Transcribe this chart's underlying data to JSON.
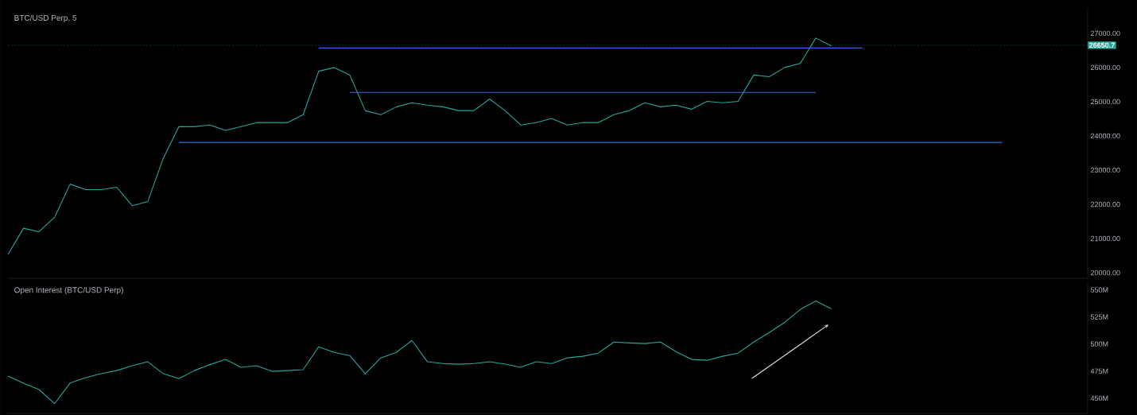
{
  "chart_data": [
    {
      "type": "line",
      "title": "BTC/USD Perp, 5",
      "tick_labels": "y",
      "categories": [
        null,
        null,
        null,
        null,
        null,
        null,
        null,
        null,
        null,
        null,
        null,
        null,
        null,
        null,
        null,
        null,
        null,
        null,
        null,
        null,
        null,
        null,
        null,
        null,
        null,
        null,
        null,
        null,
        null,
        null,
        null,
        null,
        null,
        null,
        null,
        null,
        null,
        null,
        null,
        null,
        null,
        null,
        null,
        null,
        null,
        null,
        null,
        null,
        null,
        null,
        null,
        null,
        null,
        null,
        null,
        null,
        null,
        null,
        null,
        null,
        null,
        null,
        null,
        null,
        null,
        null,
        null,
        null,
        null,
        null
      ],
      "ylim": [
        19840,
        27740
      ],
      "yticks": [
        {
          "value": 20000,
          "label": "20000.00"
        },
        {
          "value": 21000,
          "label": "21000.00"
        },
        {
          "value": 22000,
          "label": "22000.00"
        },
        {
          "value": 23000,
          "label": "23000.00"
        },
        {
          "value": 24000,
          "label": "24000.00"
        },
        {
          "value": 25000,
          "label": "25000.00"
        },
        {
          "value": 26000,
          "label": "26000.00"
        },
        {
          "value": 27000,
          "label": "27000.00"
        }
      ],
      "ref_lines": [
        {
          "axis": "y",
          "value": 26650.7,
          "label": "26650.7",
          "color": "#26a69a"
        }
      ],
      "series": [
        {
          "color": "#26a69a",
          "values": [
            20530,
            21300,
            21200,
            21620,
            22590,
            22430,
            22430,
            22500,
            21960,
            22080,
            23350,
            24270,
            24270,
            24320,
            24160,
            24270,
            24390,
            24390,
            24390,
            24620,
            25890,
            26000,
            25780,
            24740,
            24620,
            24850,
            24970,
            24900,
            24850,
            24740,
            24740,
            25080,
            24740,
            24320,
            24390,
            24510,
            24320,
            24390,
            24390,
            24620,
            24740,
            24970,
            24850,
            24900,
            24780,
            25010,
            24970,
            25010,
            25780,
            25730,
            26000,
            26120,
            26860,
            26630,
            null,
            null,
            null,
            null,
            null,
            null,
            null,
            null,
            null,
            null,
            null,
            null,
            null,
            null,
            null,
            null
          ]
        },
        {
          "color": "#2f6fd6",
          "values": [
            null,
            null,
            null,
            null,
            null,
            null,
            null,
            null,
            null,
            null,
            null,
            null,
            null,
            null,
            null,
            null,
            null,
            null,
            null,
            null,
            26570,
            26570,
            26570,
            26570,
            26570,
            26570,
            26570,
            26570,
            26570,
            26570,
            26570,
            26570,
            26570,
            26570,
            26570,
            26570,
            26570,
            26570,
            26570,
            26570,
            26570,
            26570,
            26570,
            26570,
            26570,
            26570,
            26570,
            26570,
            26570,
            26570,
            26570,
            26570,
            26570,
            26570,
            26570,
            26570,
            null,
            null,
            null,
            null,
            null,
            null,
            null,
            null,
            null,
            null,
            null,
            null,
            null,
            null
          ]
        },
        {
          "color": "#2f6fd6",
          "values": [
            null,
            null,
            null,
            null,
            null,
            null,
            null,
            null,
            null,
            null,
            null,
            null,
            null,
            null,
            null,
            null,
            null,
            null,
            null,
            null,
            null,
            null,
            25270,
            25270,
            25270,
            25270,
            25270,
            25270,
            25270,
            25270,
            25270,
            25270,
            25270,
            25270,
            25270,
            25270,
            25270,
            25270,
            25270,
            25270,
            25270,
            25270,
            25270,
            25270,
            25270,
            25270,
            25270,
            25270,
            25270,
            25270,
            25270,
            25270,
            25270,
            null,
            null,
            null,
            null,
            null,
            null,
            null,
            null,
            null,
            null,
            null,
            null,
            null,
            null,
            null,
            null,
            null
          ]
        },
        {
          "color": "#2f6fd6",
          "values": [
            null,
            null,
            null,
            null,
            null,
            null,
            null,
            null,
            null,
            null,
            null,
            23810,
            23810,
            23810,
            23810,
            23810,
            23810,
            23810,
            23810,
            23810,
            23810,
            23810,
            23810,
            23810,
            23810,
            23810,
            23810,
            23810,
            23810,
            23810,
            23810,
            23810,
            23810,
            23810,
            23810,
            23810,
            23810,
            23810,
            23810,
            23810,
            23810,
            23810,
            23810,
            23810,
            23810,
            23810,
            23810,
            23810,
            23810,
            23810,
            23810,
            23810,
            23810,
            23810,
            23810,
            23810,
            23810,
            23810,
            23810,
            23810,
            23810,
            23810,
            23810,
            23810,
            23810,
            null,
            null,
            null,
            null,
            null
          ]
        }
      ]
    },
    {
      "type": "line",
      "title": "Open Interest (BTC/USD Perp)",
      "tick_labels": "y",
      "categories": [
        null,
        null,
        null,
        null,
        null,
        null,
        null,
        null,
        null,
        null,
        null,
        null,
        null,
        null,
        null,
        null,
        null,
        null,
        null,
        null,
        null,
        null,
        null,
        null,
        null,
        null,
        null,
        null,
        null,
        null,
        null,
        null,
        null,
        null,
        null,
        null,
        null,
        null,
        null,
        null,
        null,
        null,
        null,
        null,
        null,
        null,
        null,
        null,
        null,
        null,
        null,
        null,
        null,
        null,
        null,
        null,
        null,
        null,
        null,
        null,
        null,
        null,
        null,
        null,
        null,
        null,
        null,
        null,
        null,
        null
      ],
      "ylim": [
        436,
        557
      ],
      "yticks": [
        {
          "value": 450,
          "label": "450M"
        },
        {
          "value": 475,
          "label": "475M"
        },
        {
          "value": 500,
          "label": "500M"
        },
        {
          "value": 525,
          "label": "525M"
        },
        {
          "value": 550,
          "label": "550M"
        }
      ],
      "series": [
        {
          "color": "#26a69a",
          "values": [
            470.4,
            463.9,
            458,
            445,
            464,
            469,
            472.6,
            475.5,
            480,
            483.6,
            472.6,
            468,
            475.5,
            481,
            485.8,
            478.5,
            480,
            474.8,
            475.5,
            476.3,
            497.4,
            492.3,
            489.4,
            472.6,
            487.2,
            492.3,
            503.3,
            483.6,
            482,
            481.4,
            482,
            483.6,
            481.4,
            478.5,
            483.6,
            482,
            487.2,
            488.7,
            491.6,
            501.8,
            501,
            500.4,
            501.8,
            493,
            485.8,
            485,
            488.7,
            491.6,
            501.8,
            510.6,
            520,
            531.8,
            539.8,
            532.5,
            null,
            null,
            null,
            null,
            null,
            null,
            null,
            null,
            null,
            null,
            null,
            null,
            null,
            null,
            null,
            null
          ]
        }
      ]
    }
  ]
}
